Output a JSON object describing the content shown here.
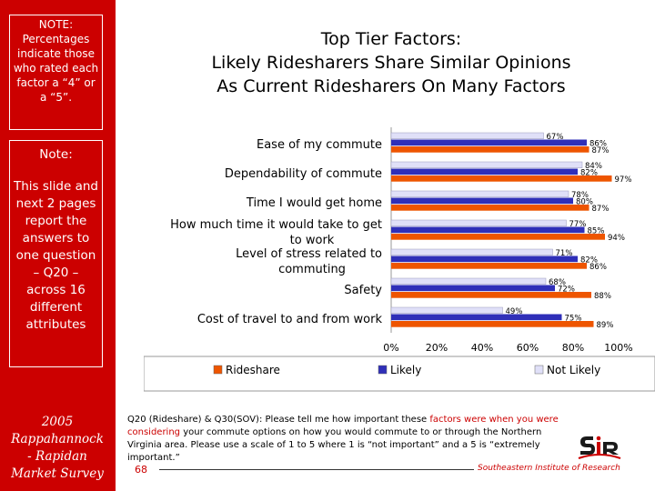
{
  "sidebar": {
    "note1": "NOTE: Percentages indicate those who rated each factor a “4” or a “5”.",
    "note2_heading": "Note:",
    "note2_body": "This slide and next 2 pages report the answers to one question – Q20 – across 16 different attributes",
    "survey_line1": "2005",
    "survey_line2": "Rappahannock",
    "survey_line3": "- Rapidan",
    "survey_line4": "Market Survey"
  },
  "title": {
    "line1": "Top Tier Factors:",
    "line2": "Likely Ridesharers Share Similar Opinions",
    "line3": "As Current Ridesharers On Many Factors"
  },
  "chart_data": {
    "type": "bar",
    "orientation": "horizontal",
    "categories": [
      "Ease of my commute",
      "Dependability of commute",
      "Time I would get home",
      "How much time it would take to get to work",
      "Level of stress related to commuting",
      "Safety",
      "Cost of travel to and from work"
    ],
    "series": [
      {
        "name": "Not Likely",
        "color": "#e0e0f8",
        "values": [
          67,
          84,
          78,
          77,
          71,
          68,
          49
        ]
      },
      {
        "name": "Likely",
        "color": "#2f2fb8",
        "values": [
          86,
          82,
          80,
          85,
          82,
          72,
          75
        ]
      },
      {
        "name": "Rideshare",
        "color": "#ee5500",
        "values": [
          87,
          97,
          87,
          94,
          86,
          88,
          89
        ]
      }
    ],
    "legend_order": [
      "Rideshare",
      "Likely",
      "Not Likely"
    ],
    "xlim": [
      0,
      100
    ],
    "xticks": [
      "0%",
      "20%",
      "40%",
      "60%",
      "80%",
      "100%"
    ],
    "value_suffix": "%",
    "legend_position": "bottom"
  },
  "footer": {
    "text_part1": "Q20 (Rideshare) & Q30(SOV): Please tell me how important these ",
    "text_hl": "factors were when you were considering",
    "text_part2": " your commute options on how you would commute to or through the Northern Virginia area. Please use a scale of 1 to 5 where 1 is “not important” and a 5 is “extremely important.”",
    "page_number": "68",
    "organization": "Southeastern Institute of Research"
  }
}
